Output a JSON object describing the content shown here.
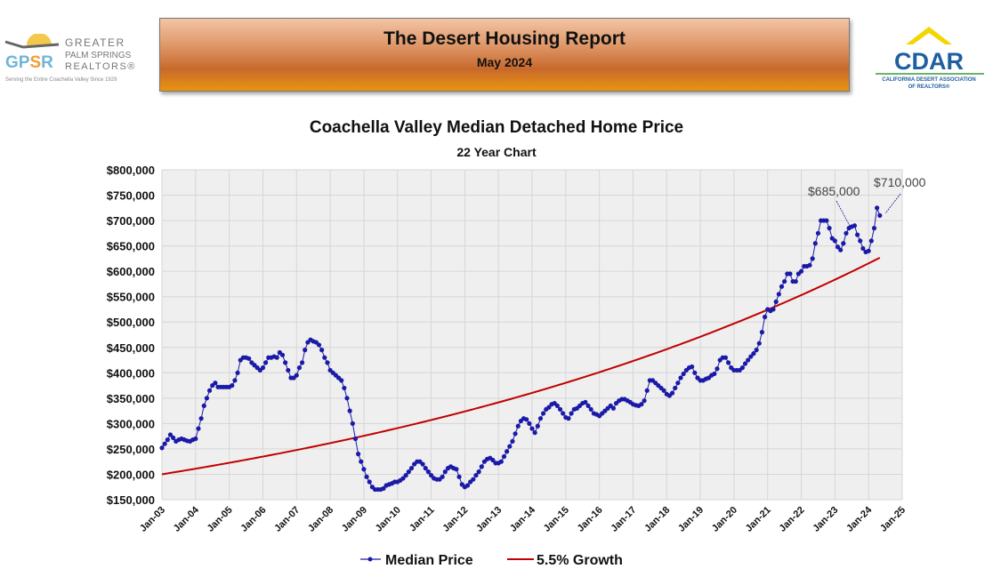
{
  "header": {
    "title": "The Desert Housing Report",
    "subtitle": "May 2024"
  },
  "logos": {
    "left": {
      "mark": "GPSR",
      "line1": "GREATER",
      "line2": "PALM SPRINGS",
      "line3": "REALTORS®",
      "tagline": "Serving the Entire Coachella Valley Since 1929"
    },
    "right": {
      "mark": "CDAR",
      "line1": "CALIFORNIA DESERT ASSOCIATION",
      "line2": "OF REALTORS®"
    }
  },
  "colors": {
    "median": "#1a1aa8",
    "growth": "#c00000",
    "plot_bg": "#efefef",
    "grid": "#d6d6d6"
  },
  "chart_data": {
    "type": "line",
    "title": "Coachella Valley Median Detached Home Price",
    "subtitle": "22 Year Chart",
    "xlabel": "",
    "ylabel": "",
    "ylim": [
      150000,
      800000
    ],
    "y_ticks": [
      "$800,000",
      "$750,000",
      "$700,000",
      "$650,000",
      "$600,000",
      "$550,000",
      "$500,000",
      "$450,000",
      "$400,000",
      "$350,000",
      "$300,000",
      "$250,000",
      "$200,000",
      "$150,000"
    ],
    "x_ticks": [
      "Jan-03",
      "Jan-04",
      "Jan-05",
      "Jan-06",
      "Jan-07",
      "Jan-08",
      "Jan-09",
      "Jan-10",
      "Jan-11",
      "Jan-12",
      "Jan-13",
      "Jan-14",
      "Jan-15",
      "Jan-16",
      "Jan-17",
      "Jan-18",
      "Jan-19",
      "Jan-20",
      "Jan-21",
      "Jan-22",
      "Jan-23",
      "Jan-24",
      "Jan-25"
    ],
    "xlim": [
      "Jan-03",
      "Jan-25"
    ],
    "grid": true,
    "legend_position": "bottom",
    "series": [
      {
        "name": "Median Price",
        "start": "Jan-03",
        "frequency": "monthly",
        "marker": "circle",
        "values": [
          252000,
          260000,
          268000,
          278000,
          272000,
          265000,
          268000,
          270000,
          268000,
          266000,
          265000,
          268000,
          270000,
          290000,
          310000,
          335000,
          350000,
          365000,
          375000,
          380000,
          372000,
          372000,
          372000,
          372000,
          372000,
          375000,
          385000,
          400000,
          425000,
          430000,
          430000,
          428000,
          420000,
          415000,
          410000,
          405000,
          410000,
          420000,
          430000,
          430000,
          432000,
          430000,
          440000,
          435000,
          420000,
          405000,
          390000,
          390000,
          395000,
          410000,
          420000,
          445000,
          460000,
          465000,
          462000,
          460000,
          455000,
          445000,
          430000,
          420000,
          405000,
          400000,
          395000,
          390000,
          385000,
          370000,
          350000,
          325000,
          300000,
          270000,
          240000,
          225000,
          210000,
          195000,
          185000,
          175000,
          170000,
          170000,
          170000,
          172000,
          178000,
          180000,
          182000,
          185000,
          185000,
          188000,
          192000,
          198000,
          205000,
          212000,
          220000,
          225000,
          225000,
          220000,
          212000,
          205000,
          198000,
          192000,
          190000,
          190000,
          195000,
          205000,
          212000,
          215000,
          212000,
          210000,
          195000,
          180000,
          175000,
          178000,
          185000,
          190000,
          198000,
          205000,
          215000,
          225000,
          230000,
          232000,
          228000,
          222000,
          222000,
          225000,
          235000,
          245000,
          255000,
          265000,
          280000,
          295000,
          305000,
          310000,
          308000,
          300000,
          290000,
          282000,
          295000,
          310000,
          320000,
          328000,
          332000,
          338000,
          340000,
          335000,
          328000,
          320000,
          312000,
          310000,
          320000,
          328000,
          330000,
          335000,
          340000,
          342000,
          335000,
          328000,
          320000,
          318000,
          315000,
          320000,
          325000,
          330000,
          335000,
          330000,
          340000,
          345000,
          348000,
          348000,
          345000,
          342000,
          338000,
          336000,
          335000,
          338000,
          345000,
          365000,
          385000,
          385000,
          380000,
          375000,
          370000,
          365000,
          358000,
          355000,
          360000,
          370000,
          380000,
          390000,
          398000,
          405000,
          410000,
          412000,
          400000,
          390000,
          385000,
          385000,
          388000,
          390000,
          395000,
          398000,
          408000,
          425000,
          430000,
          430000,
          420000,
          410000,
          405000,
          405000,
          405000,
          410000,
          418000,
          425000,
          432000,
          438000,
          445000,
          458000,
          480000,
          510000,
          525000,
          522000,
          525000,
          540000,
          555000,
          570000,
          580000,
          595000,
          595000,
          580000,
          580000,
          595000,
          600000,
          610000,
          610000,
          612000,
          625000,
          655000,
          675000,
          700000,
          700000,
          700000,
          685000,
          665000,
          660000,
          648000,
          642000,
          655000,
          675000,
          685000,
          688000,
          690000,
          672000,
          660000,
          645000,
          638000,
          640000,
          660000,
          685000,
          725000,
          710000
        ]
      },
      {
        "name": "5.5% Growth",
        "start": "Jan-03",
        "end": "May-24",
        "start_value": 200000,
        "annual_rate": 0.055,
        "marker": "none"
      }
    ],
    "annotations": [
      {
        "text": "$685,000",
        "at": "Jun-23"
      },
      {
        "text": "$710,000",
        "at": "May-24"
      }
    ]
  }
}
